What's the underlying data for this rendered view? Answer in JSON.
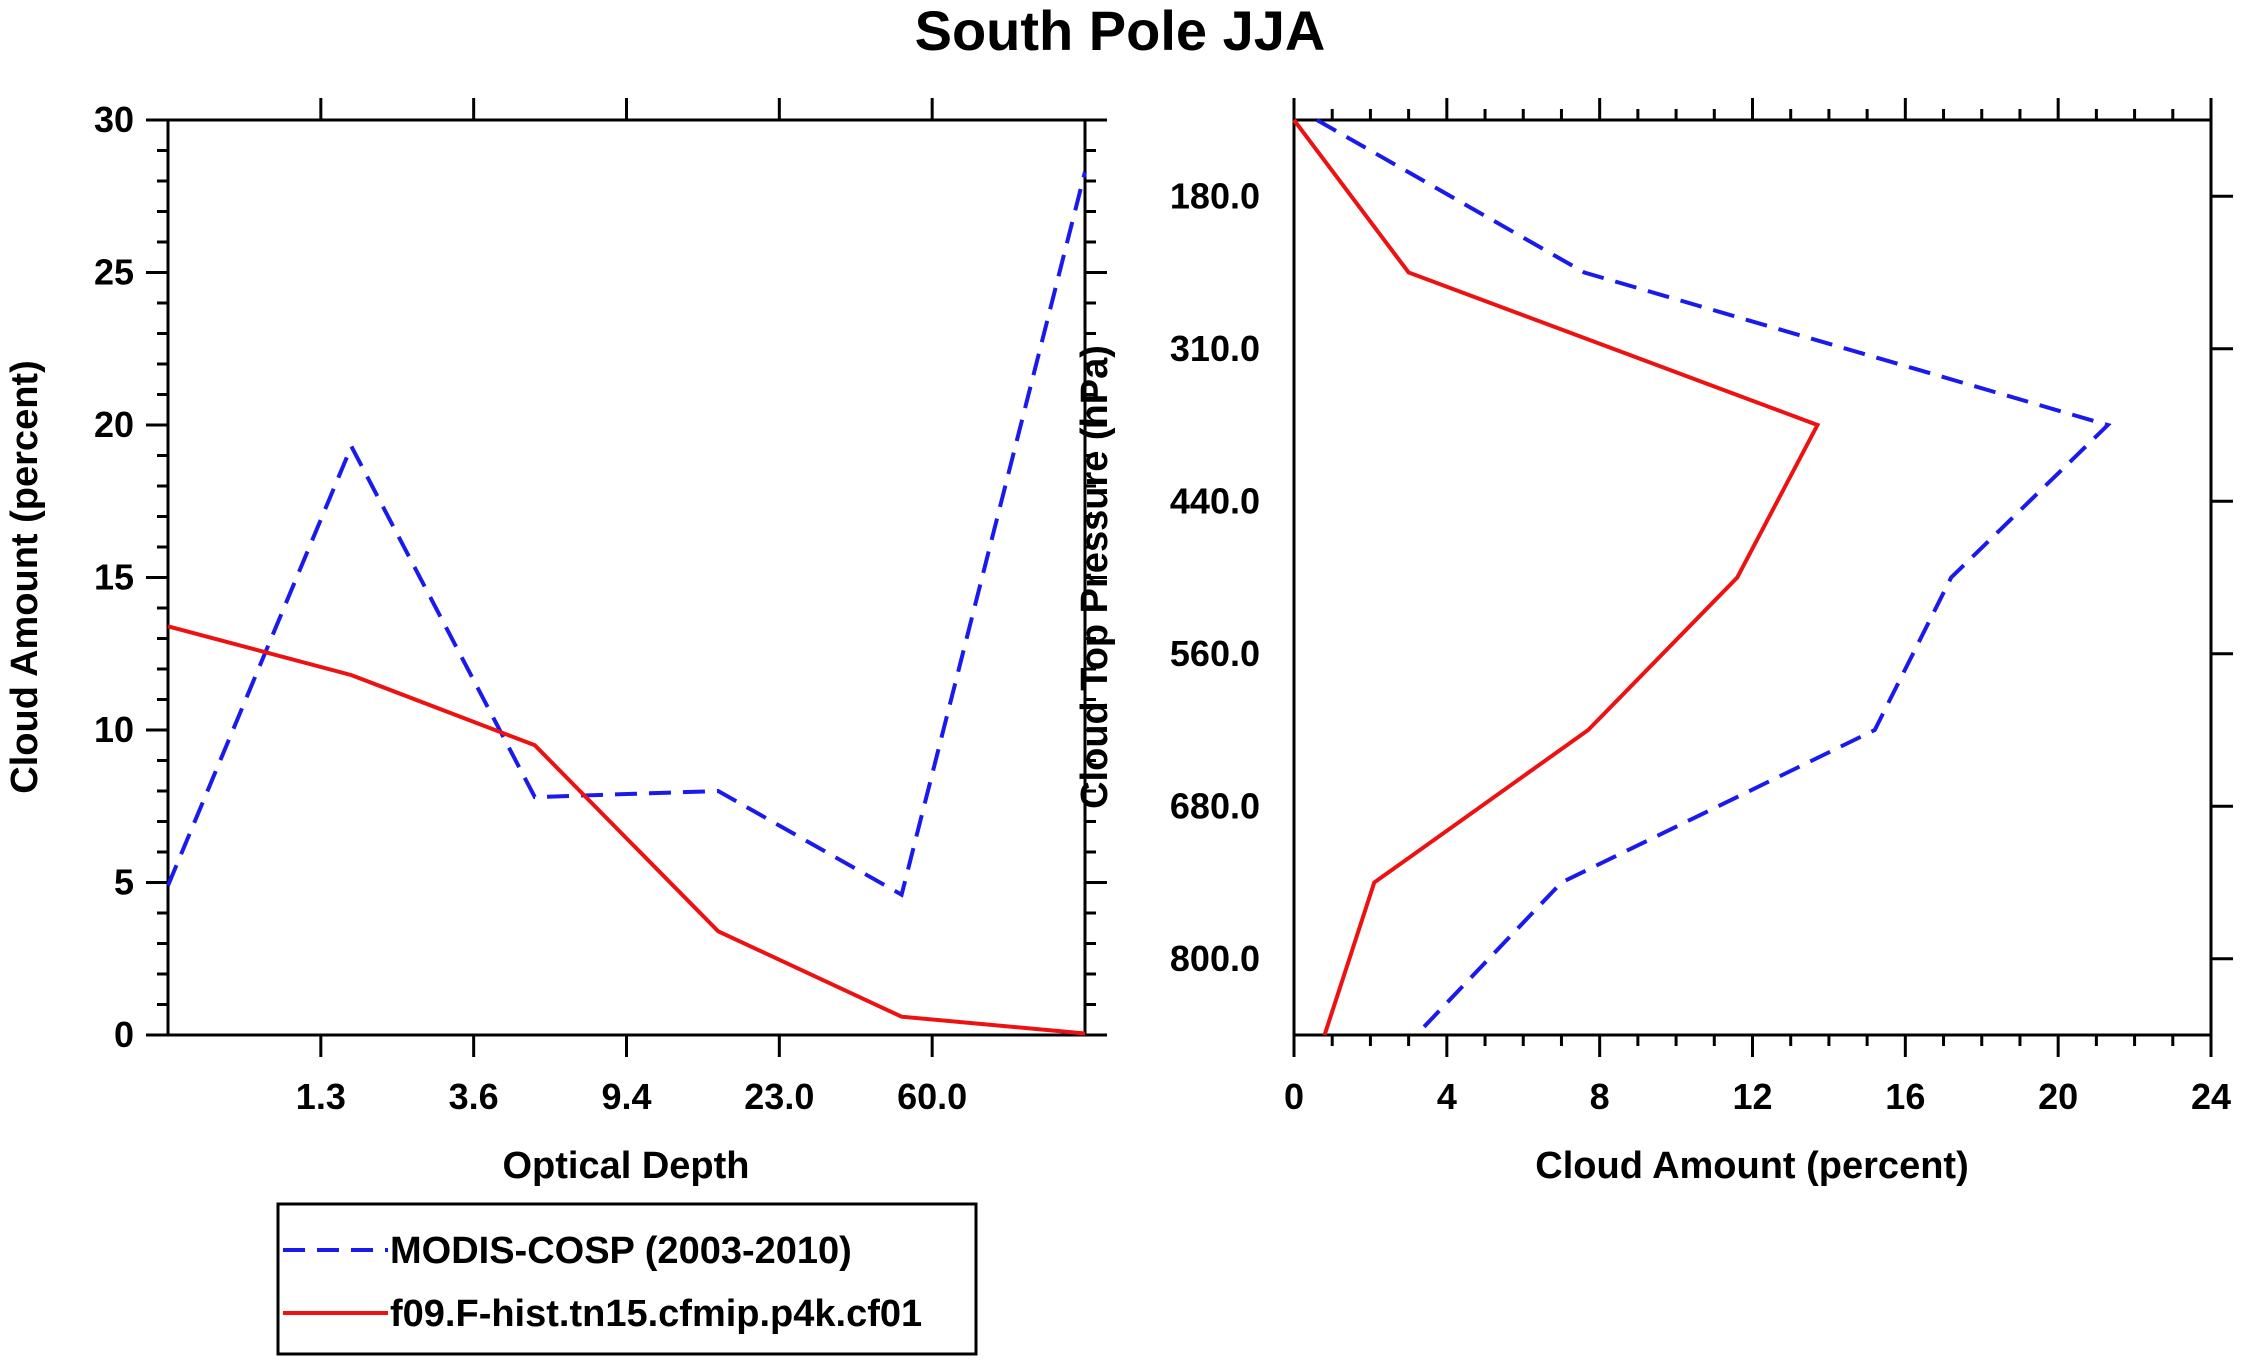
{
  "title": "South Pole JJA",
  "colors": {
    "modis": "#1a1aee",
    "model": "#ee1111",
    "axis": "#000000"
  },
  "chart_data": [
    {
      "type": "line",
      "title": "South Pole JJA",
      "xlabel": "Optical Depth",
      "ylabel": "Cloud Amount (percent)",
      "ylim": [
        0,
        30
      ],
      "yticks": [
        "0",
        "5",
        "10",
        "15",
        "20",
        "25",
        "30"
      ],
      "xtick_labels": [
        "1.3",
        "3.6",
        "9.4",
        "23.0",
        "60.0"
      ],
      "x_bins": [
        0,
        1,
        2,
        3,
        4,
        5,
        6
      ],
      "series": [
        {
          "name": "MODIS-COSP (2003-2010)",
          "style": "dashed",
          "values": [
            4.9,
            19.3,
            7.8,
            8.0,
            4.6,
            28.3
          ]
        },
        {
          "name": "f09.F-hist.tn15.cfmip.p4k.cf01",
          "style": "solid",
          "values": [
            13.4,
            11.8,
            9.5,
            3.4,
            0.6,
            0.05
          ]
        }
      ]
    },
    {
      "type": "line",
      "xlabel": "Cloud Amount (percent)",
      "ylabel": "Cloud Top Pressure (hPa)",
      "xlim": [
        0,
        24
      ],
      "xticks": [
        "0",
        "4",
        "8",
        "12",
        "16",
        "20",
        "24"
      ],
      "ytick_labels": [
        "180.0",
        "310.0",
        "440.0",
        "560.0",
        "680.0",
        "800.0"
      ],
      "pressure_levels": [
        0,
        1,
        2,
        3,
        4,
        5,
        6
      ],
      "series": [
        {
          "name": "MODIS-COSP (2003-2010)",
          "style": "dashed",
          "values": [
            0.6,
            7.6,
            21.3,
            17.2,
            15.2,
            7.0,
            3.2
          ]
        },
        {
          "name": "f09.F-hist.tn15.cfmip.p4k.cf01",
          "style": "solid",
          "values": [
            0.0,
            3.0,
            13.7,
            11.6,
            7.7,
            2.1,
            0.8
          ]
        }
      ]
    }
  ],
  "legend": [
    {
      "label": "MODIS-COSP (2003-2010)",
      "style": "dashed"
    },
    {
      "label": "f09.F-hist.tn15.cfmip.p4k.cf01",
      "style": "solid"
    }
  ]
}
